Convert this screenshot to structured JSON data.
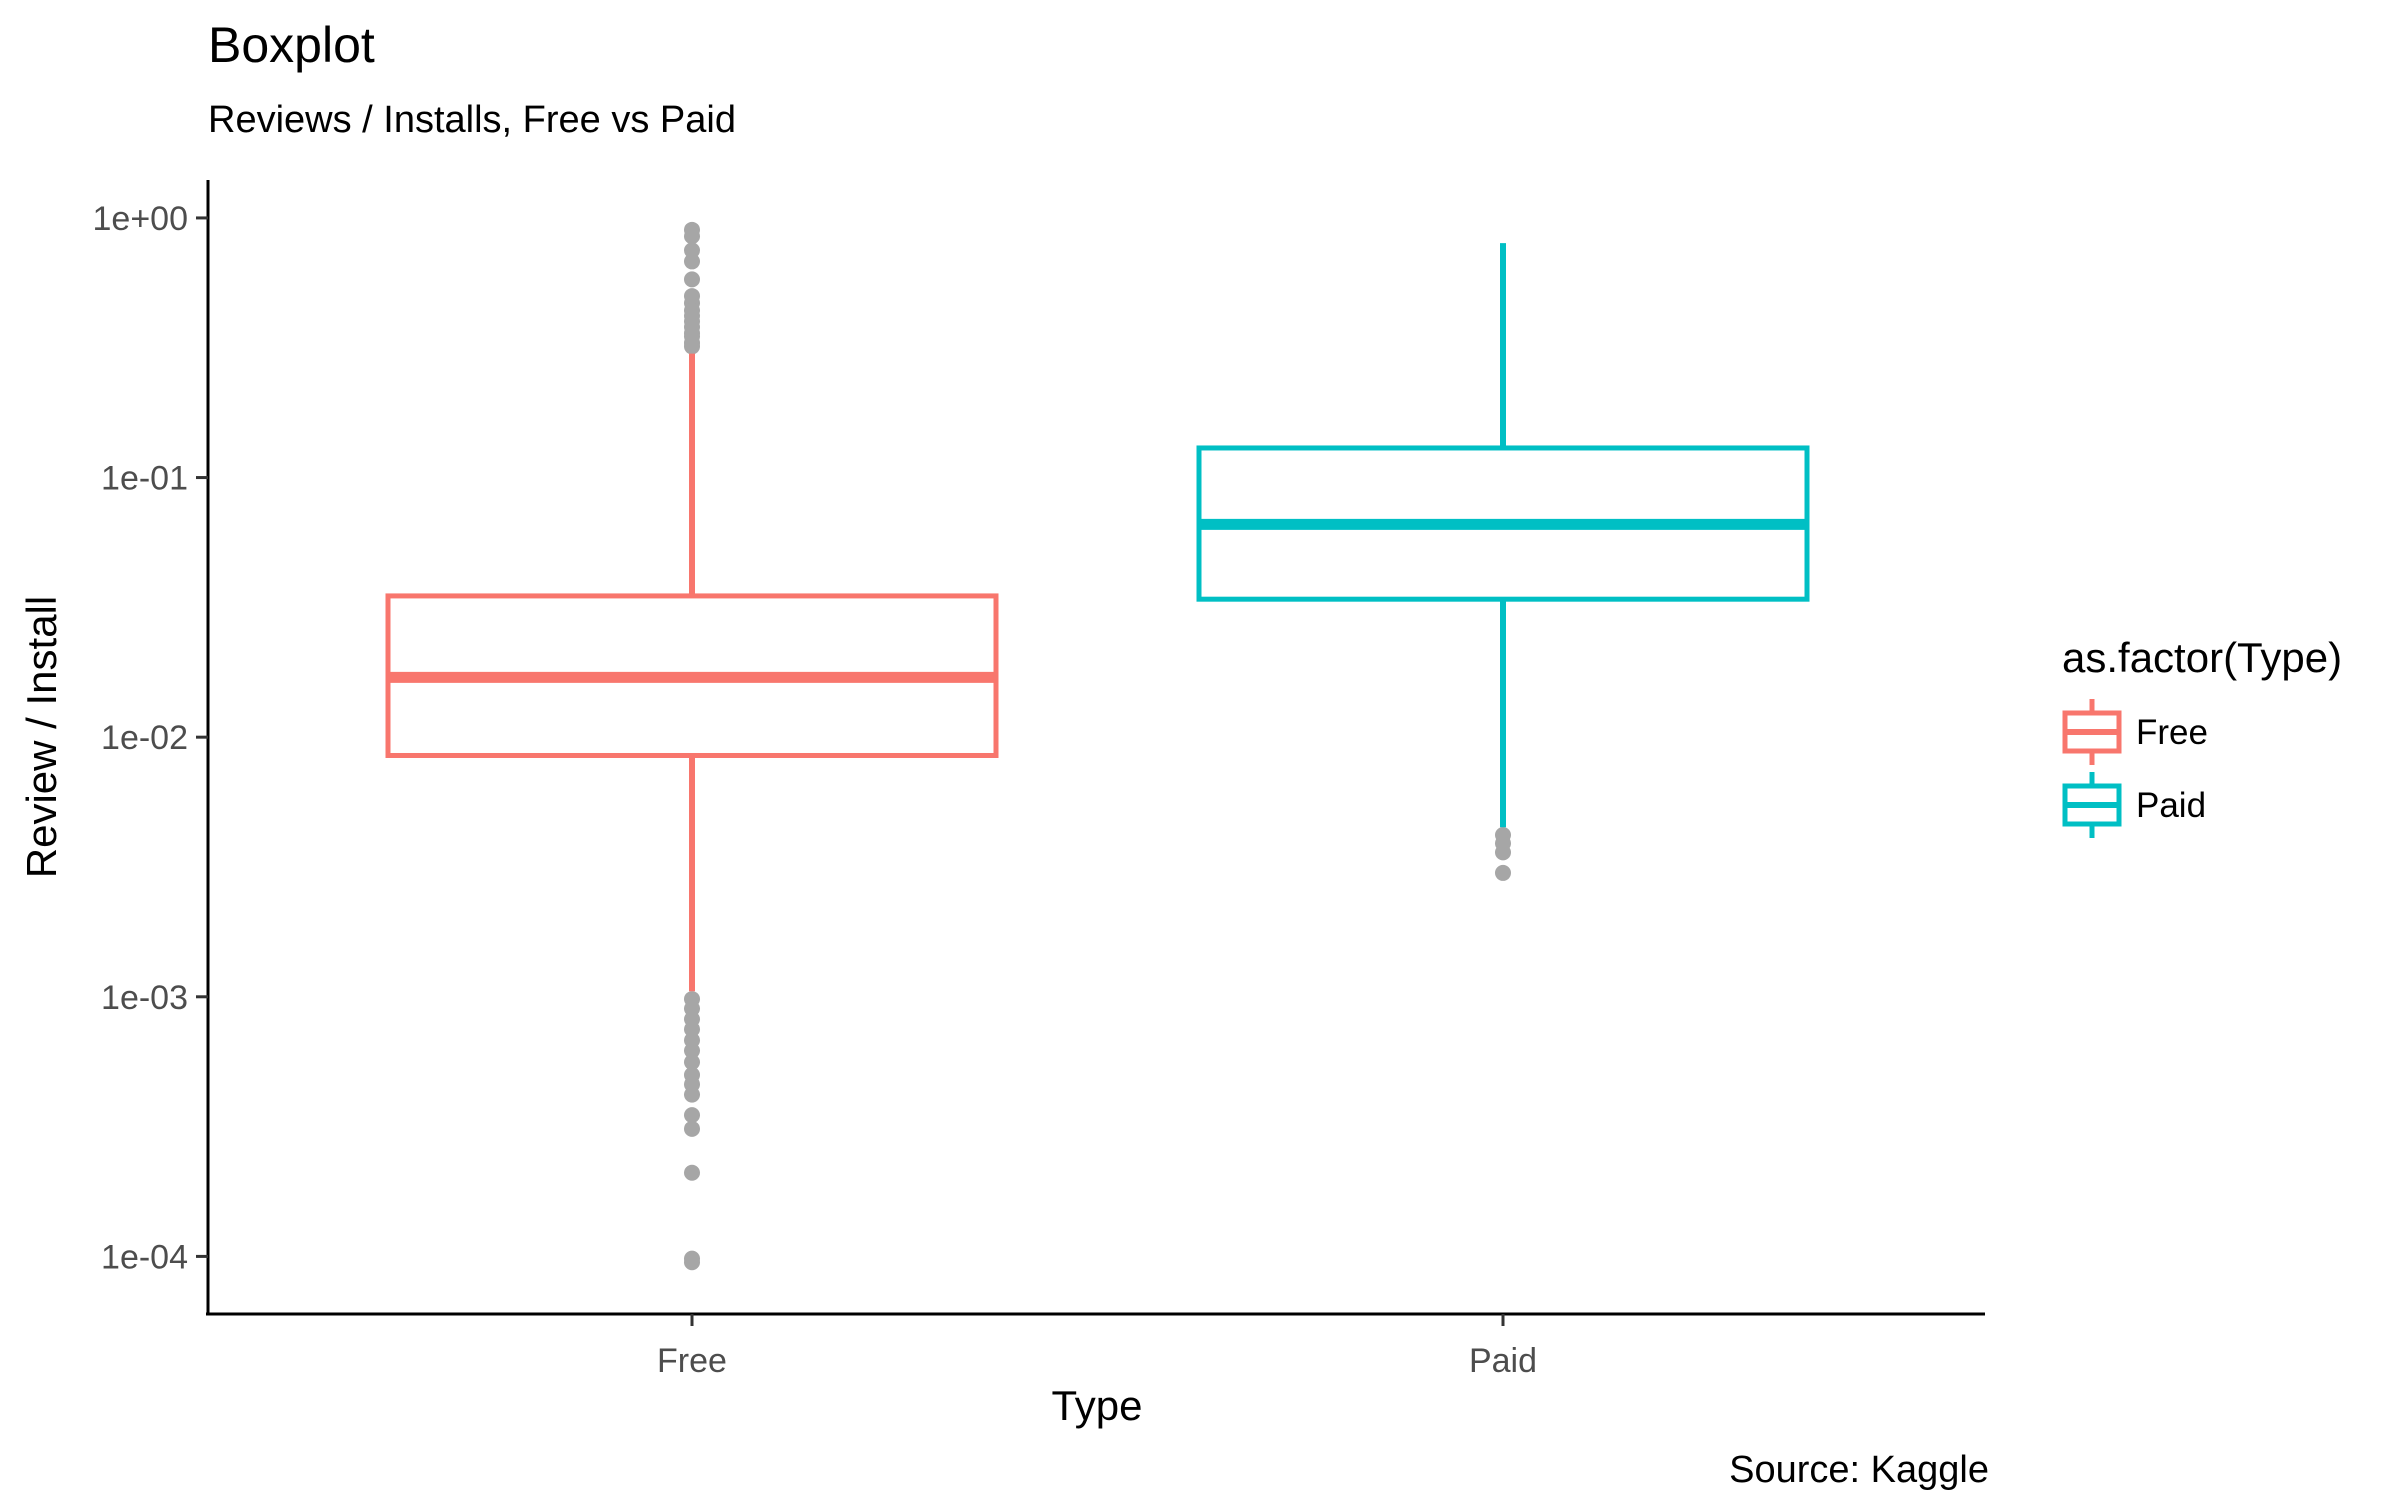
{
  "chart_data": {
    "type": "boxplot",
    "title": "Boxplot",
    "subtitle": "Reviews / Installs, Free vs Paid",
    "caption": "Source: Kaggle",
    "xlabel": "Type",
    "ylabel": "Review / Install",
    "y_scale": "log10",
    "ylim": [
      6e-05,
      1.4
    ],
    "y_ticks": [
      1,
      0.1,
      0.01,
      0.001,
      0.0001
    ],
    "y_tick_labels": [
      "1e+00",
      "1e-01",
      "1e-02",
      "1e-03",
      "1e-04"
    ],
    "categories": [
      "Free",
      "Paid"
    ],
    "legend": {
      "title": "as.factor(Type)",
      "position": "right",
      "entries": [
        "Free",
        "Paid"
      ]
    },
    "grid": false,
    "colors": {
      "Free": "#f8766d",
      "Paid": "#00bfc4",
      "outlier": "#a6a6a6",
      "axis": "#000000"
    },
    "series": [
      {
        "name": "Free",
        "q1": 0.0085,
        "median": 0.017,
        "q3": 0.035,
        "whisker_low": 0.00105,
        "whisker_high": 0.3,
        "outliers": [
          0.9,
          0.85,
          0.75,
          0.68,
          0.58,
          0.5,
          0.47,
          0.44,
          0.42,
          0.4,
          0.38,
          0.36,
          0.35,
          0.33,
          0.32,
          0.00098,
          0.0009,
          0.00082,
          0.00075,
          0.00068,
          0.00062,
          0.00056,
          0.0005,
          0.00046,
          0.00042,
          0.00035,
          0.00031,
          0.00021,
          9.8e-05,
          9.5e-05
        ]
      },
      {
        "name": "Paid",
        "q1": 0.034,
        "median": 0.066,
        "q3": 0.13,
        "whisker_low": 0.0045,
        "whisker_high": 0.8,
        "outliers": [
          0.0042,
          0.0039,
          0.0036,
          0.003
        ]
      }
    ]
  }
}
